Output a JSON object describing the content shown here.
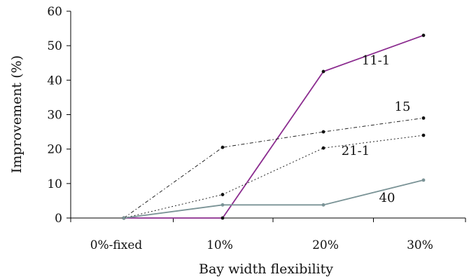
{
  "chart_data": {
    "type": "line",
    "title": "",
    "xlabel": "Bay width flexibility",
    "ylabel": "Improvement (%)",
    "categories": [
      "0%-fixed",
      "10%",
      "20%",
      "30%"
    ],
    "ylim": [
      0,
      60
    ],
    "yticks": [
      "0",
      "10",
      "20",
      "30",
      "40",
      "50",
      "60"
    ],
    "grid": false,
    "legend": "none",
    "series": [
      {
        "name": "11-1",
        "values": [
          0,
          0,
          42.5,
          53
        ],
        "color": "#8B2C8F",
        "style": "solid"
      },
      {
        "name": "15",
        "values": [
          0,
          20.5,
          25,
          29
        ],
        "color": "#222222",
        "style": "dashdot"
      },
      {
        "name": "21-1",
        "values": [
          0,
          6.8,
          20.3,
          24
        ],
        "color": "#222222",
        "style": "dotted"
      },
      {
        "name": "40",
        "values": [
          0,
          3.8,
          3.8,
          11
        ],
        "color": "#7A9396",
        "style": "solid"
      }
    ]
  }
}
